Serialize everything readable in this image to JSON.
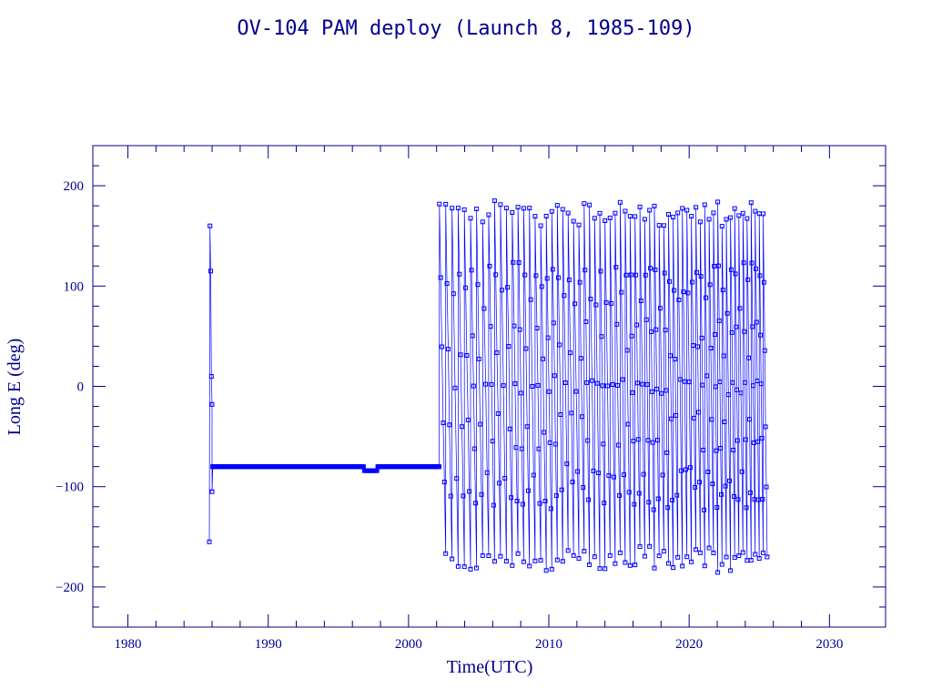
{
  "colors": {
    "axis": "#00008b",
    "data": "#0000ff",
    "background": "#ffffff"
  },
  "chart_data": {
    "type": "scatter",
    "title": "OV-104 PAM deploy (Launch 8, 1985-109)",
    "xlabel": "Time(UTC)",
    "ylabel": "Long E (deg)",
    "xlim": [
      1977.5,
      2034
    ],
    "ylim": [
      -240,
      240
    ],
    "xticks": [
      1980,
      1990,
      2000,
      2010,
      2020,
      2030
    ],
    "xtick_labels": [
      "1980",
      "1990",
      "2000",
      "2010",
      "2020",
      "2030"
    ],
    "yticks": [
      -200,
      -100,
      0,
      100,
      200
    ],
    "ytick_labels": [
      "−200",
      "−100",
      "0",
      "100",
      "200"
    ],
    "marker": "open-square",
    "grid": false,
    "segments": [
      {
        "name": "initial",
        "x": [
          1985.8,
          1985.85,
          1985.9,
          1985.95,
          1986.0,
          1986.0,
          1986.05
        ],
        "y": [
          -155,
          160,
          115,
          10,
          -18,
          -105,
          -80
        ]
      },
      {
        "name": "station-kept",
        "x_range": [
          1986.0,
          2002.2
        ],
        "y_constant": -80,
        "dip": {
          "x_range": [
            1996.8,
            1997.8
          ],
          "y": -84
        }
      },
      {
        "name": "drifting",
        "x_range": [
          2002.2,
          2025.5
        ],
        "y_range": [
          -180,
          180
        ],
        "start_period_years": 0.45,
        "end_period_years": 0.28
      }
    ]
  }
}
